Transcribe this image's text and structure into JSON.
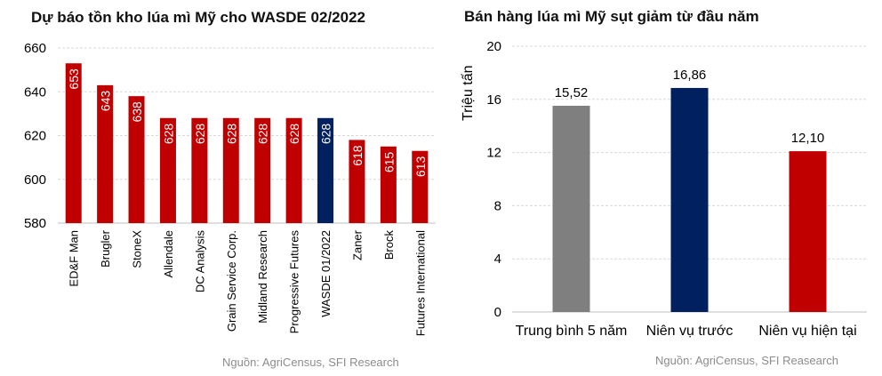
{
  "chart_data": [
    {
      "type": "bar",
      "title": "Dự báo tồn kho lúa mì Mỹ cho WASDE 02/2022",
      "categories": [
        "ED&F Man",
        "Brugler",
        "StoneX",
        "Allendale",
        "DC Analysis",
        "Grain Service Corp.",
        "Midland Research",
        "Progressive Futures",
        "WASDE 01/2022",
        "Zaner",
        "Brock",
        "Futures International"
      ],
      "values": [
        653,
        643,
        638,
        628,
        628,
        628,
        628,
        628,
        628,
        618,
        615,
        613
      ],
      "data_labels": [
        "653",
        "643",
        "638",
        "628",
        "628",
        "628",
        "628",
        "628",
        "628",
        "618",
        "615",
        "613"
      ],
      "colors": [
        "#c00000",
        "#c00000",
        "#c00000",
        "#c00000",
        "#c00000",
        "#c00000",
        "#c00000",
        "#c00000",
        "#002060",
        "#c00000",
        "#c00000",
        "#c00000"
      ],
      "ylim": [
        580,
        660
      ],
      "yticks": [
        "580",
        "600",
        "620",
        "640",
        "660"
      ],
      "grid": true,
      "source": "Nguồn: AgriCensus, SFI Research"
    },
    {
      "type": "bar",
      "title": "Bán hàng lúa mì Mỹ sụt giảm từ đầu năm",
      "ylabel": "Triệu tấn",
      "categories": [
        "Trung bình 5 năm",
        "Niên vụ trước",
        "Niên vụ hiện tại"
      ],
      "values": [
        15.52,
        16.86,
        12.1
      ],
      "data_labels": [
        "15,52",
        "16,86",
        "12,10"
      ],
      "colors": [
        "#7f7f7f",
        "#002060",
        "#c00000"
      ],
      "ylim": [
        0,
        20
      ],
      "yticks": [
        "0",
        "4",
        "8",
        "12",
        "16",
        "20"
      ],
      "grid": true,
      "source": "Nguồn: AgriCensus, SFI Reasearch"
    }
  ]
}
